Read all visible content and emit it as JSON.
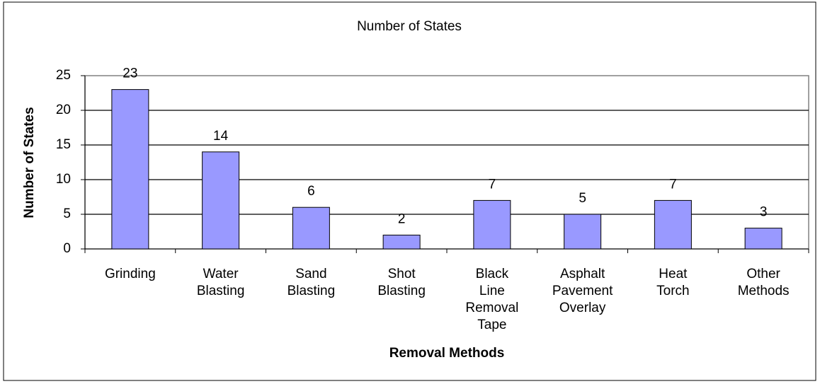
{
  "chart_data": {
    "type": "bar",
    "title": "Number of States",
    "x_label": "Removal Methods",
    "y_label": "Number of States",
    "categories": [
      "Grinding",
      "Water Blasting",
      "Sand Blasting",
      "Shot Blasting",
      "Black Line Removal Tape",
      "Asphalt Pavement Overlay",
      "Heat Torch",
      "Other Methods"
    ],
    "values": [
      23,
      14,
      6,
      2,
      7,
      5,
      7,
      3
    ],
    "color": "#9999ff",
    "ylim": [
      0,
      25
    ],
    "yticks": [
      0,
      5,
      10,
      15,
      20,
      25
    ],
    "grid": true
  }
}
